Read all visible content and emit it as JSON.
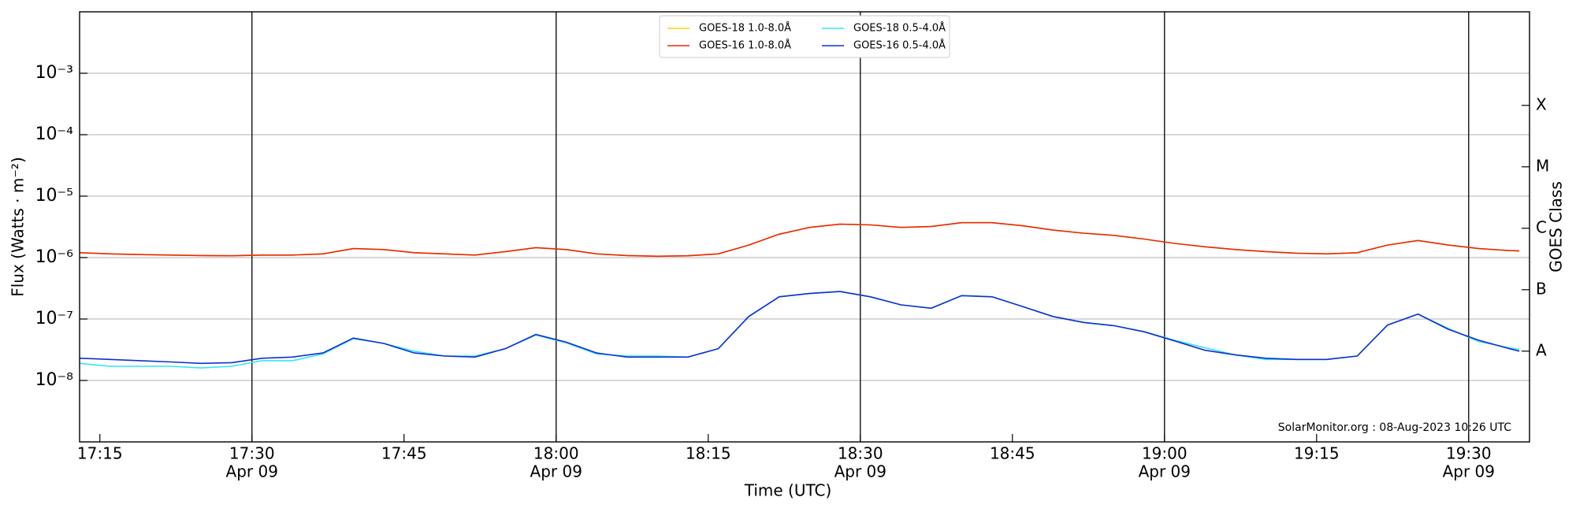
{
  "chart_data": {
    "type": "line",
    "ylabel": "Flux (Watts · m⁻²)",
    "xlabel": "Time (UTC)",
    "y2label": "GOES Class",
    "annotation": "SolarMonitor.org : 08-Aug-2023 10:26 UTC",
    "log_y": true,
    "grid": true,
    "legend": "upper center",
    "xlim": [
      "17:13",
      "19:36"
    ],
    "ylim": [
      1e-09,
      0.01
    ],
    "yticks": [
      {
        "value": 1e-08,
        "label": "10⁻⁸"
      },
      {
        "value": 1e-07,
        "label": "10⁻⁷"
      },
      {
        "value": 1e-06,
        "label": "10⁻⁶"
      },
      {
        "value": 1e-05,
        "label": "10⁻⁵"
      },
      {
        "value": 0.0001,
        "label": "10⁻⁴"
      },
      {
        "value": 0.001,
        "label": "10⁻³"
      }
    ],
    "y2ticks": [
      {
        "value": 3e-08,
        "label": "A"
      },
      {
        "value": 3e-07,
        "label": "B"
      },
      {
        "value": 3e-06,
        "label": "C"
      },
      {
        "value": 3e-05,
        "label": "M"
      },
      {
        "value": 0.0003,
        "label": "X"
      }
    ],
    "xticks": [
      {
        "value": "17:15",
        "label": [
          "17:15"
        ]
      },
      {
        "value": "17:30",
        "label": [
          "17:30",
          "Apr 09"
        ]
      },
      {
        "value": "17:45",
        "label": [
          "17:45"
        ]
      },
      {
        "value": "18:00",
        "label": [
          "18:00",
          "Apr 09"
        ]
      },
      {
        "value": "18:15",
        "label": [
          "18:15"
        ]
      },
      {
        "value": "18:30",
        "label": [
          "18:30",
          "Apr 09"
        ]
      },
      {
        "value": "18:45",
        "label": [
          "18:45"
        ]
      },
      {
        "value": "19:00",
        "label": [
          "19:00",
          "Apr 09"
        ]
      },
      {
        "value": "19:15",
        "label": [
          "19:15"
        ]
      },
      {
        "value": "19:30",
        "label": [
          "19:30",
          "Apr 09"
        ]
      }
    ],
    "vlines": [
      "17:30",
      "18:00",
      "18:30",
      "19:00",
      "19:30"
    ],
    "x": [
      "17:13",
      "17:16",
      "17:19",
      "17:22",
      "17:25",
      "17:28",
      "17:31",
      "17:34",
      "17:37",
      "17:40",
      "17:43",
      "17:46",
      "17:49",
      "17:52",
      "17:55",
      "17:58",
      "18:01",
      "18:04",
      "18:07",
      "18:10",
      "18:13",
      "18:16",
      "18:19",
      "18:22",
      "18:25",
      "18:28",
      "18:31",
      "18:34",
      "18:37",
      "18:40",
      "18:43",
      "18:46",
      "18:49",
      "18:52",
      "18:55",
      "18:58",
      "19:01",
      "19:04",
      "19:07",
      "19:10",
      "19:13",
      "19:16",
      "19:19",
      "19:22",
      "19:25",
      "19:28",
      "19:31",
      "19:34",
      "19:35"
    ],
    "series": [
      {
        "name": "GOES-18 1.0-8.0Å",
        "color": "#ffd700",
        "values": [
          1.2e-06,
          1.15e-06,
          1.12e-06,
          1.1e-06,
          1.08e-06,
          1.07e-06,
          1.1e-06,
          1.1e-06,
          1.15e-06,
          1.4e-06,
          1.35e-06,
          1.2e-06,
          1.15e-06,
          1.1e-06,
          1.25e-06,
          1.45e-06,
          1.35e-06,
          1.15e-06,
          1.08e-06,
          1.05e-06,
          1.07e-06,
          1.15e-06,
          1.6e-06,
          2.4e-06,
          3.1e-06,
          3.5e-06,
          3.4e-06,
          3.1e-06,
          3.2e-06,
          3.7e-06,
          3.7e-06,
          3.3e-06,
          2.8e-06,
          2.5e-06,
          2.3e-06,
          2e-06,
          1.7e-06,
          1.5e-06,
          1.35e-06,
          1.25e-06,
          1.18e-06,
          1.15e-06,
          1.2e-06,
          1.6e-06,
          1.9e-06,
          1.6e-06,
          1.4e-06,
          1.3e-06,
          1.28e-06
        ]
      },
      {
        "name": "GOES-16 1.0-8.0Å",
        "color": "#e8280a",
        "values": [
          1.2e-06,
          1.15e-06,
          1.12e-06,
          1.1e-06,
          1.08e-06,
          1.07e-06,
          1.1e-06,
          1.1e-06,
          1.15e-06,
          1.4e-06,
          1.35e-06,
          1.2e-06,
          1.15e-06,
          1.1e-06,
          1.25e-06,
          1.45e-06,
          1.35e-06,
          1.15e-06,
          1.08e-06,
          1.05e-06,
          1.07e-06,
          1.15e-06,
          1.6e-06,
          2.4e-06,
          3.1e-06,
          3.5e-06,
          3.4e-06,
          3.1e-06,
          3.2e-06,
          3.7e-06,
          3.7e-06,
          3.3e-06,
          2.8e-06,
          2.5e-06,
          2.3e-06,
          2e-06,
          1.7e-06,
          1.5e-06,
          1.35e-06,
          1.25e-06,
          1.18e-06,
          1.15e-06,
          1.2e-06,
          1.6e-06,
          1.9e-06,
          1.6e-06,
          1.4e-06,
          1.3e-06,
          1.28e-06
        ]
      },
      {
        "name": "GOES-18 0.5-4.0Å",
        "color": "#33e6f0",
        "values": [
          1.9e-08,
          1.7e-08,
          1.7e-08,
          1.7e-08,
          1.6e-08,
          1.7e-08,
          2.1e-08,
          2.1e-08,
          2.7e-08,
          4.8e-08,
          4e-08,
          3e-08,
          2.5e-08,
          2.5e-08,
          3.3e-08,
          5.5e-08,
          4.1e-08,
          2.7e-08,
          2.5e-08,
          2.5e-08,
          2.4e-08,
          3.3e-08,
          1.1e-07,
          2.3e-07,
          2.6e-07,
          2.8e-07,
          2.3e-07,
          1.7e-07,
          1.5e-07,
          2.4e-07,
          2.3e-07,
          1.6e-07,
          1.1e-07,
          8.8e-08,
          7.8e-08,
          6.2e-08,
          4.5e-08,
          3.4e-08,
          2.6e-08,
          2.2e-08,
          2.2e-08,
          2.2e-08,
          2.5e-08,
          8e-08,
          1.2e-07,
          7e-08,
          4.3e-08,
          3.4e-08,
          3.2e-08
        ]
      },
      {
        "name": "GOES-16 0.5-4.0Å",
        "color": "#1030d0",
        "values": [
          2.3e-08,
          2.2e-08,
          2.1e-08,
          2e-08,
          1.9e-08,
          1.95e-08,
          2.3e-08,
          2.4e-08,
          2.8e-08,
          4.9e-08,
          4e-08,
          2.8e-08,
          2.5e-08,
          2.4e-08,
          3.3e-08,
          5.6e-08,
          4.2e-08,
          2.8e-08,
          2.4e-08,
          2.4e-08,
          2.4e-08,
          3.3e-08,
          1.1e-07,
          2.3e-07,
          2.6e-07,
          2.8e-07,
          2.3e-07,
          1.7e-07,
          1.5e-07,
          2.4e-07,
          2.3e-07,
          1.6e-07,
          1.1e-07,
          8.8e-08,
          7.8e-08,
          6.2e-08,
          4.4e-08,
          3.1e-08,
          2.6e-08,
          2.3e-08,
          2.2e-08,
          2.2e-08,
          2.5e-08,
          8e-08,
          1.2e-07,
          6.8e-08,
          4.5e-08,
          3.3e-08,
          3e-08
        ]
      }
    ]
  }
}
